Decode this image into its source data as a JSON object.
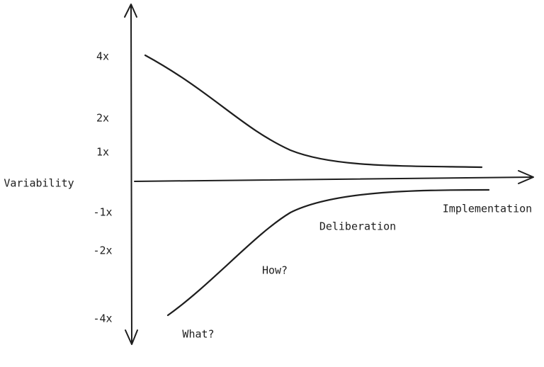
{
  "y_axis": {
    "label": "Variability",
    "ticks": [
      "4x",
      "2x",
      "1x",
      "-1x",
      "-2x",
      "-4x"
    ]
  },
  "phases": [
    "What?",
    "How?",
    "Deliberation",
    "Implementation"
  ]
}
